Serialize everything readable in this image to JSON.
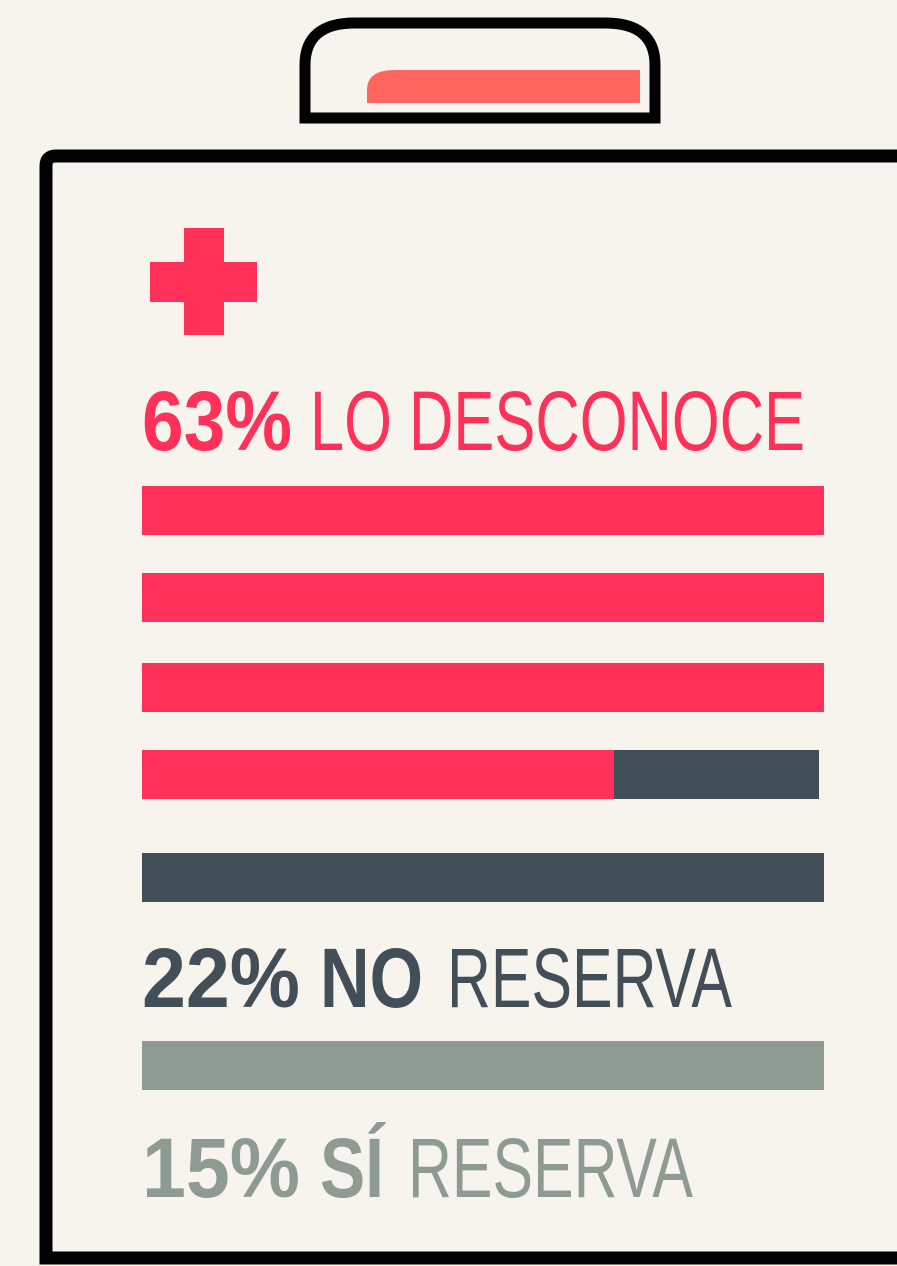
{
  "stats": [
    {
      "percent": "63%",
      "label": "LO DESCONOCE"
    },
    {
      "percent": "22%",
      "emphasis": "NO",
      "label": "RESERVA"
    },
    {
      "percent": "15%",
      "emphasis": "SÍ",
      "label": "RESERVA"
    }
  ]
}
